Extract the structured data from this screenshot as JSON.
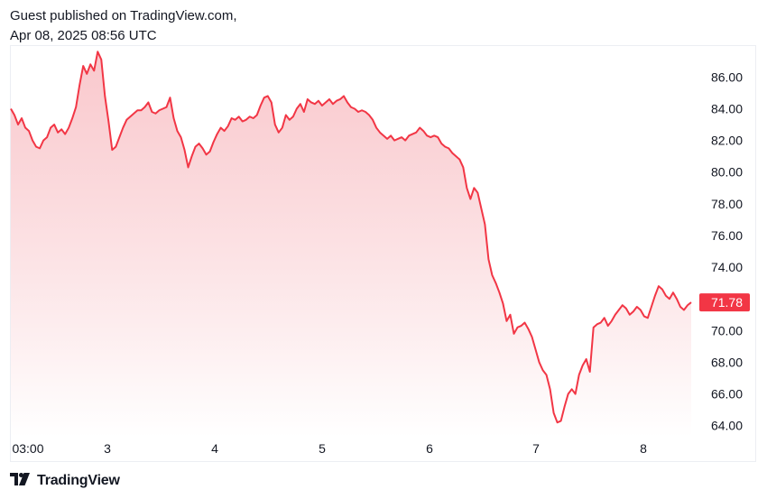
{
  "header": {
    "published_line": "Guest published on TradingView.com,",
    "timestamp": "Apr 08, 2025 08:56 UTC"
  },
  "footer": {
    "brand": "TradingView",
    "logo_icon": "tradingview-logo-icon"
  },
  "colors": {
    "line": "#f23645",
    "fill_top": "#f7b6bc",
    "fill_bottom": "#ffffff",
    "last_price_bg": "#f23645"
  },
  "chart_data": {
    "type": "area",
    "ylim": [
      63.3,
      87.9
    ],
    "y_ticks": [
      "64.00",
      "66.00",
      "68.00",
      "70.00",
      "72.00",
      "74.00",
      "76.00",
      "78.00",
      "80.00",
      "82.00",
      "84.00",
      "86.00"
    ],
    "x_ticks": [
      "03:00",
      "3",
      "4",
      "5",
      "6",
      "7",
      "8"
    ],
    "last_price": "71.78",
    "series": [
      {
        "values": [
          84.0,
          83.6,
          83.0,
          83.4,
          82.8,
          82.6,
          82.0,
          81.6,
          81.5,
          82.0,
          82.2,
          82.8,
          83.0,
          82.5,
          82.7,
          82.4,
          82.8,
          83.4,
          84.1,
          85.5,
          86.7,
          86.2,
          86.8,
          86.4,
          87.6,
          87.1,
          84.8,
          83.2,
          81.4,
          81.6,
          82.2,
          82.8,
          83.3,
          83.5,
          83.7,
          83.9,
          83.9,
          84.1,
          84.4,
          83.8,
          83.7,
          83.9,
          84.0,
          84.1,
          84.7,
          83.4,
          82.6,
          82.2,
          81.4,
          80.3,
          81.0,
          81.6,
          81.8,
          81.5,
          81.1,
          81.3,
          81.9,
          82.4,
          82.8,
          82.6,
          82.9,
          83.4,
          83.3,
          83.5,
          83.2,
          83.3,
          83.5,
          83.4,
          83.6,
          84.2,
          84.7,
          84.8,
          84.4,
          83.0,
          82.5,
          82.8,
          83.6,
          83.3,
          83.5,
          84.0,
          84.3,
          83.8,
          84.6,
          84.4,
          84.3,
          84.5,
          84.2,
          84.4,
          84.6,
          84.3,
          84.5,
          84.6,
          84.8,
          84.4,
          84.1,
          84.0,
          83.8,
          83.9,
          83.8,
          83.6,
          83.3,
          82.8,
          82.5,
          82.3,
          82.1,
          82.3,
          82.0,
          82.1,
          82.2,
          82.0,
          82.3,
          82.4,
          82.5,
          82.8,
          82.6,
          82.3,
          82.2,
          82.3,
          82.2,
          81.8,
          81.6,
          81.5,
          81.2,
          81.0,
          80.8,
          80.3,
          79.0,
          78.3,
          79.0,
          78.7,
          77.7,
          76.7,
          74.5,
          73.5,
          73.0,
          72.4,
          71.7,
          70.6,
          71.0,
          69.8,
          70.2,
          70.3,
          70.5,
          70.1,
          69.6,
          68.8,
          68.0,
          67.5,
          67.2,
          66.3,
          64.8,
          64.2,
          64.3,
          65.2,
          66.0,
          66.3,
          66.0,
          67.2,
          67.8,
          68.2,
          67.4,
          70.2,
          70.4,
          70.5,
          70.8,
          70.3,
          70.6,
          71.0,
          71.3,
          71.6,
          71.4,
          71.0,
          71.2,
          71.5,
          71.3,
          70.9,
          70.8,
          71.5,
          72.2,
          72.8,
          72.6,
          72.2,
          72.0,
          72.4,
          72.0,
          71.5,
          71.3,
          71.6,
          71.78
        ]
      }
    ]
  }
}
